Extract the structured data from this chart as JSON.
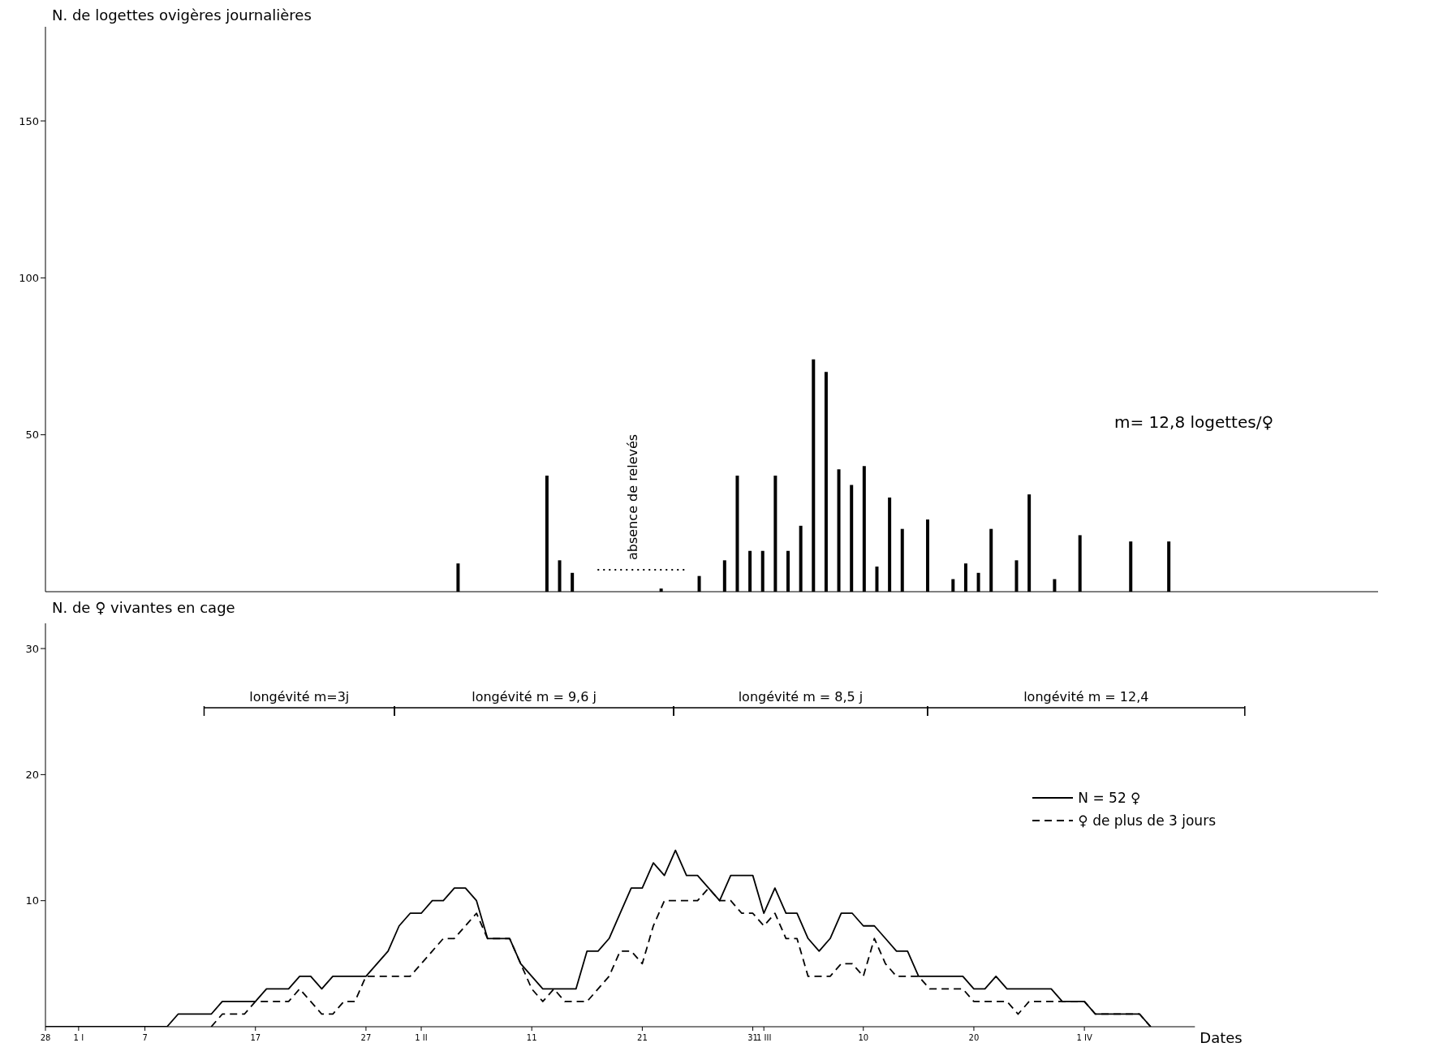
{
  "chart_data": [
    {
      "type": "bar",
      "ylabel": "N. de logettes ovigères journalières",
      "categories": [
        null,
        null,
        null,
        null,
        null,
        null,
        null,
        null,
        null,
        null,
        null,
        null,
        null,
        null,
        null,
        null,
        null,
        null,
        null,
        null,
        null,
        null,
        null,
        null,
        null,
        null,
        null,
        null,
        null,
        null,
        null,
        null,
        null,
        null,
        null,
        null,
        null,
        null,
        null,
        null,
        null,
        null,
        null,
        null,
        null,
        null,
        null,
        null,
        null,
        null,
        null,
        null,
        null,
        null,
        null,
        null,
        null,
        null,
        null,
        null,
        null,
        null,
        null,
        null,
        null,
        null,
        null,
        null,
        null,
        null,
        null,
        null,
        null,
        null,
        null,
        null,
        null,
        null,
        null,
        null,
        null,
        null,
        null,
        null,
        null,
        null,
        null,
        null,
        null,
        null,
        null,
        null,
        null,
        null,
        null,
        null,
        null,
        null,
        null,
        null,
        null,
        null,
        null,
        null,
        null
      ],
      "series": [
        {
          "color": "#000000",
          "values": [
            null,
            null,
            null,
            null,
            null,
            null,
            null,
            null,
            null,
            null,
            null,
            null,
            null,
            null,
            null,
            null,
            null,
            null,
            null,
            null,
            null,
            null,
            null,
            null,
            null,
            null,
            null,
            null,
            null,
            null,
            null,
            null,
            9,
            null,
            null,
            null,
            null,
            null,
            null,
            37,
            10,
            6,
            null,
            null,
            null,
            null,
            null,
            null,
            1,
            null,
            null,
            5,
            null,
            10,
            37,
            13,
            13,
            37,
            13,
            21,
            74,
            70,
            39,
            34,
            40,
            8,
            30,
            20,
            null,
            23,
            null,
            4,
            9,
            6,
            20,
            null,
            10,
            31,
            null,
            4,
            null,
            18,
            null,
            null,
            null,
            16,
            null,
            null,
            16,
            null,
            null,
            null,
            null,
            null,
            null,
            null,
            null,
            null,
            null,
            null,
            null,
            null,
            null,
            null,
            null
          ]
        },
        {
          "type": "line",
          "color": "#000000",
          "line_style": "dotted",
          "values": [
            null,
            null,
            null,
            null,
            null,
            null,
            null,
            null,
            null,
            null,
            null,
            null,
            null,
            null,
            null,
            null,
            null,
            null,
            null,
            null,
            null,
            null,
            null,
            null,
            null,
            null,
            null,
            null,
            null,
            null,
            null,
            null,
            null,
            null,
            null,
            null,
            null,
            null,
            null,
            null,
            null,
            null,
            null,
            7,
            7,
            7,
            7,
            7,
            7,
            7,
            7,
            null,
            null,
            null,
            null,
            null,
            null,
            null,
            null,
            null,
            null,
            null,
            null,
            null,
            null,
            null,
            null,
            null,
            null,
            null,
            null,
            null,
            null,
            null,
            null,
            null,
            null,
            null,
            null,
            null,
            null,
            null,
            null,
            null,
            null,
            null,
            null,
            null,
            null,
            null,
            null,
            null,
            null,
            null,
            null,
            null,
            null,
            null,
            null,
            null,
            null,
            null,
            null,
            null,
            null
          ]
        }
      ],
      "ylim": [
        0,
        180
      ],
      "yticks": [
        50,
        100,
        150
      ],
      "tick_labels": "y",
      "annotations": [
        "m= 12,8 logettes/♀",
        "absence de relevés"
      ]
    },
    {
      "type": "line",
      "ylabel": "N. de ♀ vivantes en cage",
      "xlabel": "Dates",
      "ylim": [
        0,
        32
      ],
      "yticks": [
        10,
        20,
        30
      ],
      "categories": [
        "28",
        null,
        null,
        "1 I",
        null,
        null,
        null,
        null,
        null,
        "7",
        null,
        null,
        null,
        null,
        null,
        null,
        null,
        null,
        null,
        "17",
        null,
        null,
        null,
        null,
        null,
        null,
        null,
        null,
        null,
        "27",
        null,
        null,
        null,
        null,
        "1 II",
        null,
        null,
        null,
        null,
        null,
        null,
        null,
        null,
        null,
        "11",
        null,
        null,
        null,
        null,
        null,
        null,
        null,
        null,
        null,
        "21",
        null,
        null,
        null,
        null,
        null,
        null,
        null,
        null,
        null,
        "31",
        "1 III",
        null,
        null,
        null,
        null,
        null,
        null,
        null,
        null,
        "10",
        null,
        null,
        null,
        null,
        null,
        null,
        null,
        null,
        null,
        "20",
        null,
        null,
        null,
        null,
        null,
        null,
        null,
        null,
        null,
        "1 IV",
        null,
        null,
        null,
        null,
        null,
        null,
        null,
        null,
        null,
        null
      ],
      "marker": "none",
      "legend": "top right",
      "annotations": [
        "longévité m=3j",
        "longévité m = 9,6 j",
        "longévité m = 8,5 j",
        "longévité m = 12,4"
      ],
      "series": [
        {
          "name": "N = 52 ♀",
          "color": "#000000",
          "line_style": "solid",
          "values": [
            0,
            0,
            0,
            0,
            0,
            0,
            0,
            0,
            0,
            0,
            0,
            0,
            1,
            1,
            1,
            1,
            2,
            2,
            2,
            2,
            3,
            3,
            3,
            4,
            4,
            3,
            4,
            4,
            4,
            4,
            5,
            6,
            8,
            9,
            9,
            10,
            10,
            11,
            11,
            10,
            7,
            7,
            7,
            5,
            4,
            3,
            3,
            3,
            3,
            6,
            6,
            7,
            9,
            11,
            11,
            13,
            12,
            14,
            12,
            12,
            11,
            10,
            12,
            12,
            12,
            9,
            11,
            9,
            9,
            7,
            6,
            7,
            9,
            9,
            8,
            8,
            7,
            6,
            6,
            4,
            4,
            4,
            4,
            4,
            3,
            3,
            4,
            3,
            3,
            3,
            3,
            3,
            2,
            2,
            2,
            1,
            1,
            1,
            1,
            1,
            0,
            null,
            null,
            null,
            null
          ]
        },
        {
          "name": "♀ de plus de 3 jours",
          "color": "#000000",
          "line_style": "dashed",
          "values": [
            null,
            null,
            null,
            null,
            null,
            null,
            null,
            null,
            null,
            null,
            null,
            null,
            null,
            null,
            null,
            0,
            1,
            1,
            1,
            2,
            2,
            2,
            2,
            3,
            2,
            1,
            1,
            2,
            2,
            4,
            4,
            4,
            4,
            4,
            5,
            6,
            7,
            7,
            8,
            9,
            7,
            7,
            7,
            5,
            3,
            2,
            3,
            2,
            2,
            2,
            3,
            4,
            6,
            6,
            5,
            8,
            10,
            10,
            10,
            10,
            11,
            10,
            10,
            9,
            9,
            8,
            9,
            7,
            7,
            4,
            4,
            4,
            5,
            5,
            4,
            7,
            5,
            4,
            4,
            4,
            3,
            3,
            3,
            3,
            2,
            2,
            2,
            2,
            1,
            2,
            2,
            2,
            2,
            2,
            2,
            1,
            1,
            1,
            1,
            1,
            0,
            null,
            null,
            null,
            null
          ]
        }
      ]
    }
  ]
}
